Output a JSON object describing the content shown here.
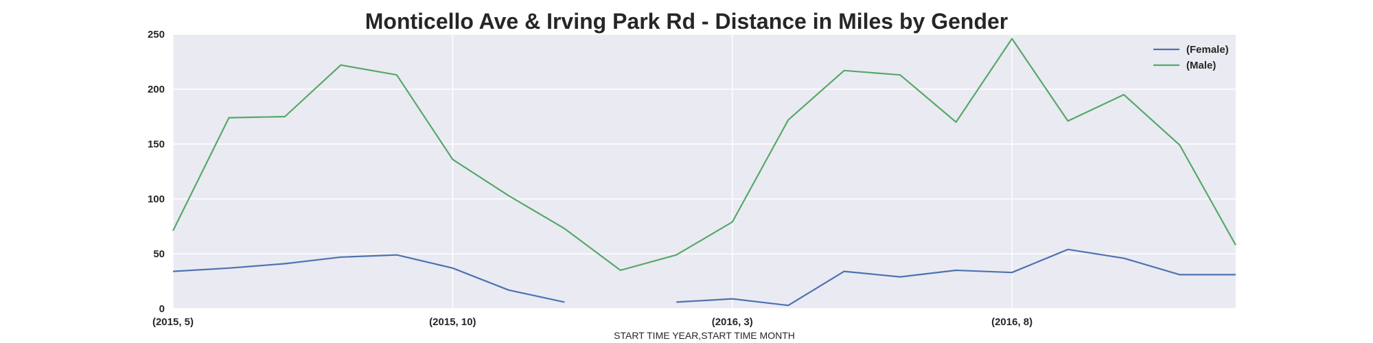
{
  "chart_data": {
    "type": "line",
    "title": "Monticello Ave & Irving Park Rd - Distance in Miles by Gender",
    "xlabel": "START TIME YEAR,START TIME MONTH",
    "ylabel": "",
    "ylim": [
      0,
      250
    ],
    "yticks": [
      0,
      50,
      100,
      150,
      200,
      250
    ],
    "x": [
      "(2015, 5)",
      "(2015, 6)",
      "(2015, 7)",
      "(2015, 8)",
      "(2015, 9)",
      "(2015, 10)",
      "(2015, 11)",
      "(2015, 12)",
      "(2016, 1)",
      "(2016, 2)",
      "(2016, 3)",
      "(2016, 4)",
      "(2016, 5)",
      "(2016, 6)",
      "(2016, 7)",
      "(2016, 8)",
      "(2016, 9)",
      "(2016, 10)",
      "(2016, 11)",
      "(2016, 12)"
    ],
    "xtick_labels": [
      "(2015, 5)",
      "(2015, 10)",
      "(2016, 3)",
      "(2016, 8)"
    ],
    "grid": true,
    "legend_position": "top-right",
    "background_color": "#EAEAF2",
    "series": [
      {
        "name": "(Female)",
        "color": "#4C72B0",
        "values": [
          34,
          37,
          41,
          47,
          49,
          37,
          17,
          6,
          null,
          6,
          9,
          3,
          34,
          29,
          35,
          33,
          54,
          46,
          31,
          31
        ]
      },
      {
        "name": "(Male)",
        "color": "#55A868",
        "values": [
          71,
          174,
          175,
          222,
          213,
          136,
          103,
          73,
          35,
          49,
          79,
          172,
          217,
          213,
          170,
          246,
          171,
          195,
          149,
          58
        ]
      }
    ]
  }
}
